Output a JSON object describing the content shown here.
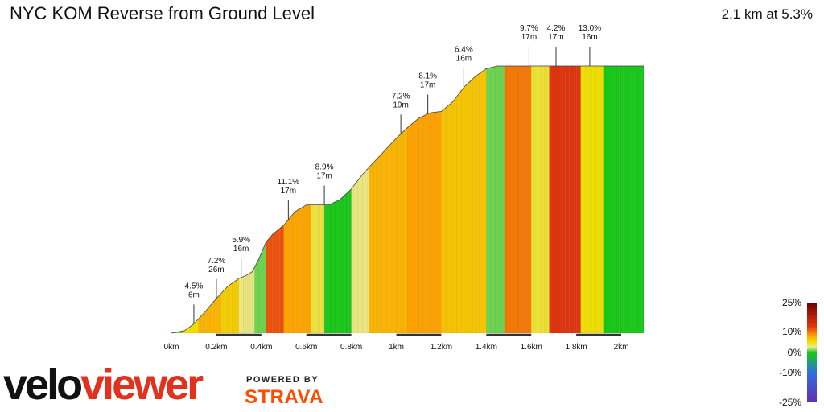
{
  "header": {
    "title": "NYC KOM Reverse from Ground Level",
    "summary": "2.1 km at 5.3%"
  },
  "branding": {
    "logo_part1": "velo",
    "logo_part2": "viewer",
    "powered_by": "POWERED BY",
    "strava": "STRAVA"
  },
  "chart_data": {
    "type": "area",
    "title": "",
    "xlabel": "",
    "ylabel": "",
    "xlim": [
      0,
      2.1
    ],
    "x_unit": "km",
    "x_tick_labels": [
      "0km",
      "0.2km",
      "0.4km",
      "0.6km",
      "0.8km",
      "1km",
      "1.2km",
      "1.4km",
      "1.6km",
      "1.8km",
      "2km"
    ],
    "x_ticks": [
      0,
      0.2,
      0.4,
      0.6,
      0.8,
      1.0,
      1.2,
      1.4,
      1.6,
      1.8,
      2.0
    ],
    "elevation_profile_relative": {
      "x": [
        0,
        0.03,
        0.06,
        0.1,
        0.15,
        0.2,
        0.25,
        0.3,
        0.33,
        0.36,
        0.39,
        0.42,
        0.45,
        0.5,
        0.55,
        0.6,
        0.65,
        0.7,
        0.75,
        0.8,
        0.85,
        0.9,
        0.95,
        1.0,
        1.05,
        1.1,
        1.15,
        1.2,
        1.25,
        1.3,
        1.35,
        1.4,
        1.45,
        1.5,
        1.55,
        1.6,
        1.65,
        1.7,
        1.75,
        1.8,
        1.85,
        1.9,
        1.95,
        2.0,
        2.05,
        2.1
      ],
      "y": [
        0,
        0.005,
        0.01,
        0.035,
        0.08,
        0.13,
        0.175,
        0.205,
        0.215,
        0.23,
        0.28,
        0.34,
        0.37,
        0.405,
        0.455,
        0.48,
        0.48,
        0.48,
        0.5,
        0.54,
        0.595,
        0.64,
        0.685,
        0.73,
        0.77,
        0.805,
        0.825,
        0.83,
        0.865,
        0.92,
        0.96,
        0.99,
        1.0,
        1.0,
        1.0,
        1.0,
        1.0,
        1.0,
        1.0,
        1.0,
        1.0,
        1.0,
        1.0,
        1.0,
        1.0,
        1.0
      ]
    },
    "segments_gradient_pct": [
      {
        "x0": 0.0,
        "x1": 0.05,
        "g": 1
      },
      {
        "x0": 0.05,
        "x1": 0.12,
        "g": 5
      },
      {
        "x0": 0.12,
        "x1": 0.22,
        "g": 7.2
      },
      {
        "x0": 0.22,
        "x1": 0.3,
        "g": 5.9
      },
      {
        "x0": 0.3,
        "x1": 0.37,
        "g": 3
      },
      {
        "x0": 0.37,
        "x1": 0.42,
        "g": 1
      },
      {
        "x0": 0.42,
        "x1": 0.5,
        "g": 11.1
      },
      {
        "x0": 0.5,
        "x1": 0.62,
        "g": 8
      },
      {
        "x0": 0.62,
        "x1": 0.68,
        "g": 4
      },
      {
        "x0": 0.68,
        "x1": 0.8,
        "g": 0
      },
      {
        "x0": 0.8,
        "x1": 0.88,
        "g": 3
      },
      {
        "x0": 0.88,
        "x1": 1.05,
        "g": 7.2
      },
      {
        "x0": 1.05,
        "x1": 1.2,
        "g": 8.1
      },
      {
        "x0": 1.2,
        "x1": 1.4,
        "g": 6.4
      },
      {
        "x0": 1.4,
        "x1": 1.48,
        "g": 1
      },
      {
        "x0": 1.48,
        "x1": 1.6,
        "g": 9.7
      },
      {
        "x0": 1.6,
        "x1": 1.68,
        "g": 4.2
      },
      {
        "x0": 1.68,
        "x1": 1.82,
        "g": 13
      },
      {
        "x0": 1.82,
        "x1": 1.92,
        "g": 5
      },
      {
        "x0": 1.92,
        "x1": 2.1,
        "g": 0
      }
    ],
    "annotations": [
      {
        "x": 0.1,
        "grade": "4.5%",
        "length": "6m"
      },
      {
        "x": 0.2,
        "grade": "7.2%",
        "length": "26m"
      },
      {
        "x": 0.31,
        "grade": "5.9%",
        "length": "16m"
      },
      {
        "x": 0.52,
        "grade": "11.1%",
        "length": "17m"
      },
      {
        "x": 0.68,
        "grade": "8.9%",
        "length": "17m"
      },
      {
        "x": 1.02,
        "grade": "7.2%",
        "length": "19m"
      },
      {
        "x": 1.14,
        "grade": "8.1%",
        "length": "17m"
      },
      {
        "x": 1.3,
        "grade": "6.4%",
        "length": "16m"
      },
      {
        "x": 1.59,
        "grade": "9.7%",
        "length": "17m"
      },
      {
        "x": 1.71,
        "grade": "4.2%",
        "length": "17m"
      },
      {
        "x": 1.86,
        "grade": "13.0%",
        "length": "16m"
      }
    ],
    "color_scale": {
      "labels": [
        "25%",
        "10%",
        "0%",
        "-10%",
        "-25%"
      ],
      "values": [
        25,
        10,
        0,
        -10,
        -25
      ],
      "colors": [
        "#6b0000",
        "#e8380f",
        "#ffa500",
        "#f0e000",
        "#e8e8a0",
        "#18c818",
        "#3070e0",
        "#6030b0"
      ]
    }
  }
}
